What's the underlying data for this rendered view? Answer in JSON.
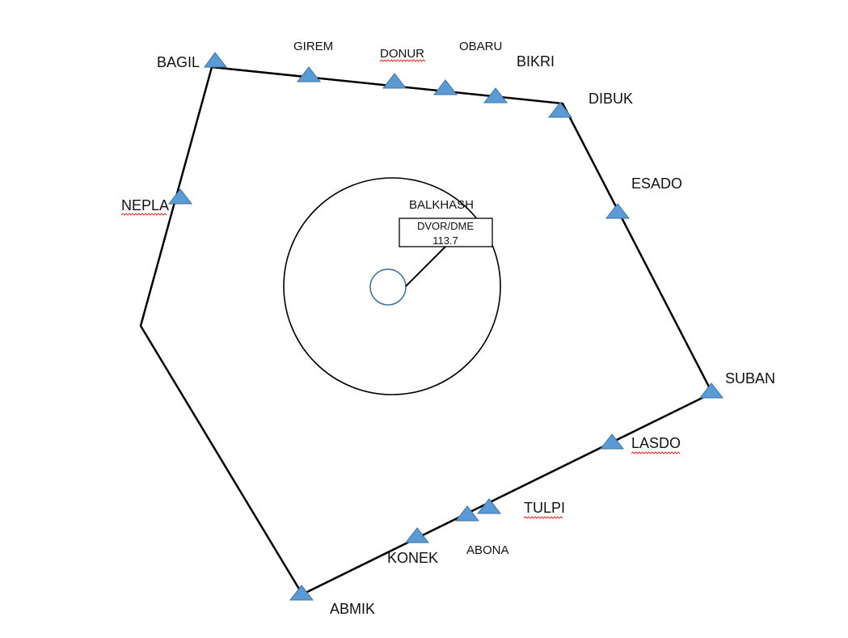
{
  "colors": {
    "boundary": "#000000",
    "triangle_fill": "#5b9bd5",
    "triangle_stroke": "#41719c",
    "inner_circle_stroke": "#41719c",
    "spellcheck_underline": "#e03030"
  },
  "navaid": {
    "name": "BALKHASH",
    "type": "DVOR/DME",
    "frequency": "113.7"
  },
  "waypoints": {
    "bagil": "BAGIL",
    "girem": "GIREM",
    "donur": "DONUR",
    "obaru": "OBARU",
    "bikri": "BIKRI",
    "dibuk": "DIBUK",
    "esado": "ESADO",
    "suban": "SUBAN",
    "lasdo": "LASDO",
    "tulpi": "TULPI",
    "abona": "ABONA",
    "konek": "KONEK",
    "abmik": "ABMIK",
    "nepla": "NEPLA"
  },
  "markers": {
    "bagil": "waypoint-triangle",
    "girem": "waypoint-triangle",
    "donur": "waypoint-triangle",
    "obaru": "waypoint-triangle",
    "bikri": "waypoint-triangle",
    "dibuk": "waypoint-triangle",
    "esado": "waypoint-triangle",
    "suban": "waypoint-triangle",
    "lasdo": "waypoint-triangle",
    "tulpi": "waypoint-triangle",
    "abona": "waypoint-triangle",
    "konek": "waypoint-triangle",
    "abmik": "waypoint-triangle",
    "nepla": "waypoint-triangle"
  }
}
